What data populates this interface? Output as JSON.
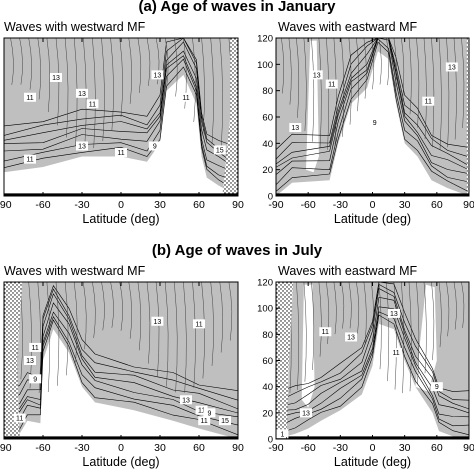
{
  "figure": {
    "panel_a_title": "(a) Age of waves in January",
    "panel_b_title": "(b) Age of waves in July"
  },
  "chart_data": [
    {
      "type": "heatmap",
      "title": "Waves with westward MF",
      "panel": "a",
      "xlabel": "Latitude (deg)",
      "ylabel": "",
      "x_ticks": [
        -90,
        -60,
        -30,
        0,
        30,
        60,
        90
      ],
      "xlim": [
        -90,
        90
      ],
      "ylim": [
        0,
        120
      ],
      "contour_labels": [
        {
          "lat": -50,
          "z": 90,
          "value": "13"
        },
        {
          "lat": -70,
          "z": 75,
          "value": "11"
        },
        {
          "lat": -30,
          "z": 78,
          "value": "13"
        },
        {
          "lat": -22,
          "z": 70,
          "value": "11"
        },
        {
          "lat": -30,
          "z": 38,
          "value": "13"
        },
        {
          "lat": -70,
          "z": 28,
          "value": "11"
        },
        {
          "lat": 0,
          "z": 33,
          "value": "11"
        },
        {
          "lat": 26,
          "z": 38,
          "value": "9"
        },
        {
          "lat": 50,
          "z": 75,
          "value": "11"
        },
        {
          "lat": 28,
          "z": 92,
          "value": "13"
        },
        {
          "lat": 76,
          "z": 35,
          "value": "15"
        }
      ]
    },
    {
      "type": "heatmap",
      "title": "Waves with eastward MF",
      "panel": "a",
      "xlabel": "Latitude (deg)",
      "ylabel": "",
      "x_ticks": [
        -90,
        -60,
        -30,
        0,
        30,
        60,
        90
      ],
      "y_ticks": [
        0,
        20,
        40,
        60,
        80,
        100,
        120
      ],
      "xlim": [
        -90,
        90
      ],
      "ylim": [
        0,
        120
      ],
      "contour_labels": [
        {
          "lat": -52,
          "z": 92,
          "value": "13"
        },
        {
          "lat": -38,
          "z": 85,
          "value": "11"
        },
        {
          "lat": 2,
          "z": 56,
          "value": "9"
        },
        {
          "lat": 52,
          "z": 72,
          "value": "11"
        },
        {
          "lat": 74,
          "z": 98,
          "value": "13"
        },
        {
          "lat": -72,
          "z": 52,
          "value": "13"
        }
      ]
    },
    {
      "type": "heatmap",
      "title": "Waves with westward MF",
      "panel": "b",
      "xlabel": "Latitude (deg)",
      "ylabel": "",
      "x_ticks": [
        -90,
        -60,
        -30,
        0,
        30,
        60,
        90
      ],
      "xlim": [
        -90,
        90
      ],
      "ylim": [
        0,
        120
      ],
      "contour_labels": [
        {
          "lat": -66,
          "z": 70,
          "value": "11"
        },
        {
          "lat": -70,
          "z": 60,
          "value": "13"
        },
        {
          "lat": -66,
          "z": 46,
          "value": "9"
        },
        {
          "lat": -78,
          "z": 16,
          "value": "11"
        },
        {
          "lat": 28,
          "z": 90,
          "value": "13"
        },
        {
          "lat": 60,
          "z": 88,
          "value": "11"
        },
        {
          "lat": 50,
          "z": 30,
          "value": "13"
        },
        {
          "lat": 62,
          "z": 22,
          "value": "11"
        },
        {
          "lat": 68,
          "z": 20,
          "value": "9"
        },
        {
          "lat": 64,
          "z": 14,
          "value": "11"
        },
        {
          "lat": 80,
          "z": 14,
          "value": "15"
        }
      ]
    },
    {
      "type": "heatmap",
      "title": "Waves with eastward MF",
      "panel": "b",
      "xlabel": "Latitude (deg)",
      "ylabel": "",
      "x_ticks": [
        -90,
        -60,
        -30,
        0,
        30,
        60,
        90
      ],
      "y_ticks": [
        0,
        20,
        40,
        60,
        80,
        100,
        120
      ],
      "xlim": [
        -90,
        90
      ],
      "ylim": [
        0,
        120
      ],
      "contour_labels": [
        {
          "lat": -44,
          "z": 82,
          "value": "11"
        },
        {
          "lat": -20,
          "z": 78,
          "value": "13"
        },
        {
          "lat": 22,
          "z": 66,
          "value": "11"
        },
        {
          "lat": 20,
          "z": 96,
          "value": "13"
        },
        {
          "lat": -62,
          "z": 20,
          "value": "13"
        },
        {
          "lat": 60,
          "z": 40,
          "value": "9"
        },
        {
          "lat": -84,
          "z": 4,
          "value": "1"
        }
      ]
    }
  ]
}
